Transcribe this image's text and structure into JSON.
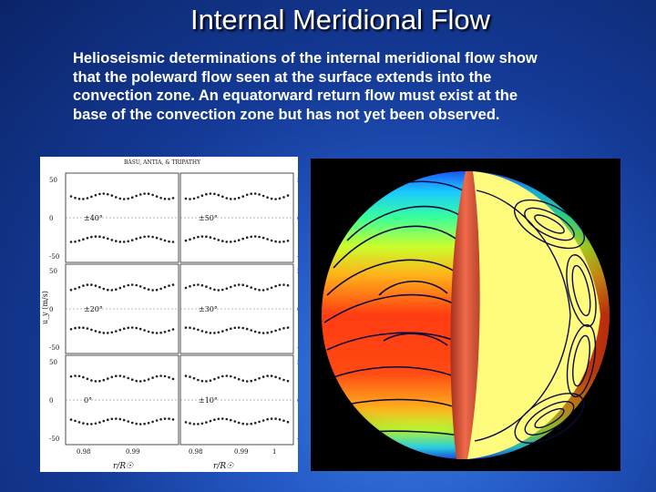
{
  "slide": {
    "title": "Internal Meridional Flow",
    "body_lines": [
      "Helioseismic determinations of the internal meridional flow show",
      "that the poleward flow seen at the surface extends into the",
      "convection zone. An equatorward return flow must exist at the",
      "base of the convection zone but has not yet been observed."
    ]
  },
  "left_figure": {
    "header": "BASU, ANTIA, & TRIPATHY",
    "ylabel": "u_y (m/s)",
    "xlabel_left": "r/R☉",
    "xlabel_right": "r/R☉",
    "x_ticks_left": [
      "0.98",
      "0.99"
    ],
    "x_ticks_right": [
      "0.98",
      "0.99",
      "1"
    ],
    "panels": [
      {
        "label": "±40°",
        "y_ticks": [
          "50",
          "0",
          "-50"
        ]
      },
      {
        "label": "±50°",
        "y_ticks": [
          "50",
          "0",
          "-50"
        ]
      },
      {
        "label": "±20°",
        "y_ticks": [
          "50",
          "0",
          "-50"
        ]
      },
      {
        "label": "±30°",
        "y_ticks": [
          "50",
          "0",
          "-50"
        ]
      },
      {
        "label": "0°",
        "y_ticks": [
          "50",
          "0",
          "-50"
        ]
      },
      {
        "label": "±10°",
        "y_ticks": [
          "50",
          "0",
          "-50"
        ]
      }
    ]
  },
  "right_figure": {
    "description_icon": "sun-cutaway-flow-diagram"
  }
}
